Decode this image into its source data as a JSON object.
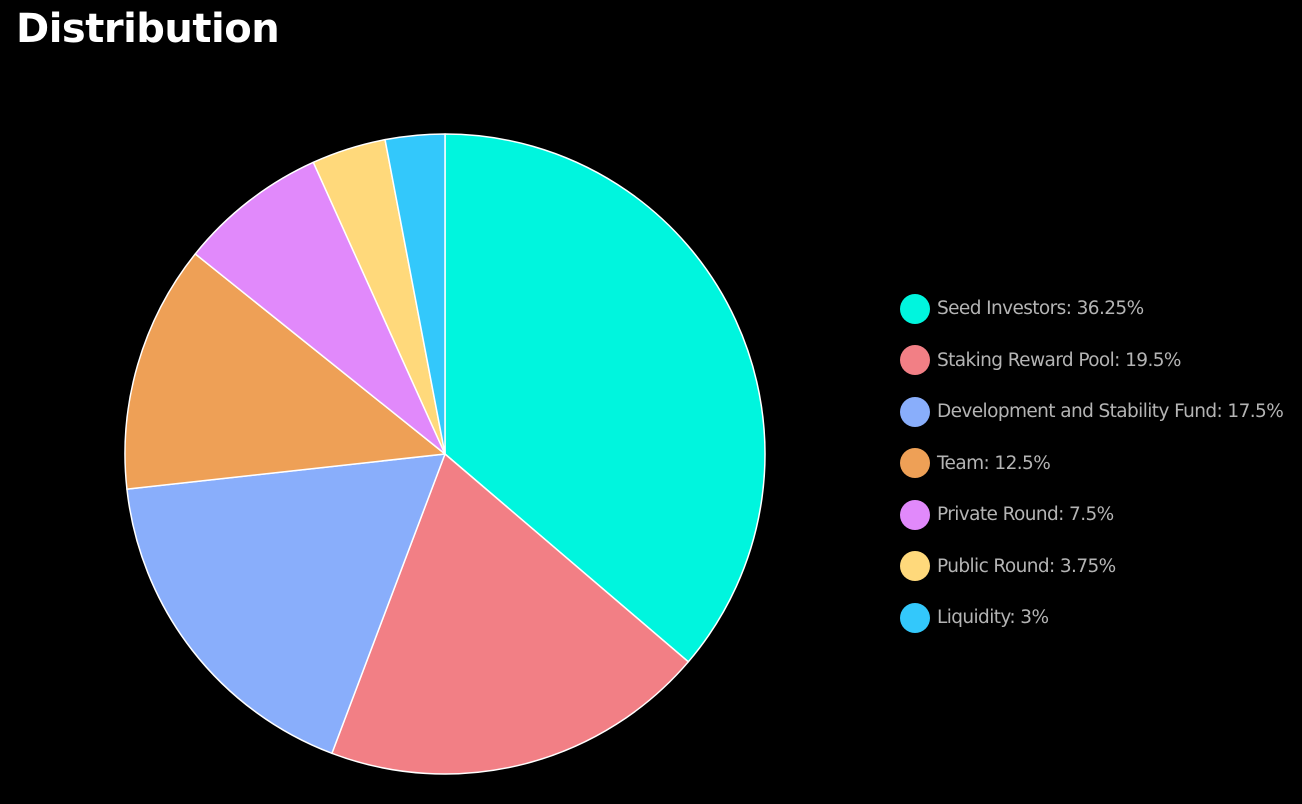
{
  "header": {
    "title": "Distribution"
  },
  "chart_data": {
    "type": "pie",
    "title": "Distribution",
    "slice_border_color": "#ffffff",
    "slices": [
      {
        "label": "Seed Investors",
        "value": 36.25,
        "color": "#00f5de",
        "legend_text": "Seed Investors: 36.25%"
      },
      {
        "label": "Staking Reward Pool",
        "value": 19.5,
        "color": "#f27f85",
        "legend_text": "Staking Reward Pool: 19.5%"
      },
      {
        "label": "Development and Stability Fund",
        "value": 17.5,
        "color": "#89aefb",
        "legend_text": "Development and Stability Fund: 17.5%"
      },
      {
        "label": "Team",
        "value": 12.5,
        "color": "#eea056",
        "legend_text": "Team: 12.5%"
      },
      {
        "label": "Private Round",
        "value": 7.5,
        "color": "#e189fb",
        "legend_text": "Private Round: 7.5%"
      },
      {
        "label": "Public Round",
        "value": 3.75,
        "color": "#ffd97b",
        "legend_text": "Public Round: 3.75%"
      },
      {
        "label": "Liquidity",
        "value": 3,
        "color": "#33c8fb",
        "legend_text": "Liquidity: 3%"
      }
    ],
    "legend_placement": "right"
  }
}
